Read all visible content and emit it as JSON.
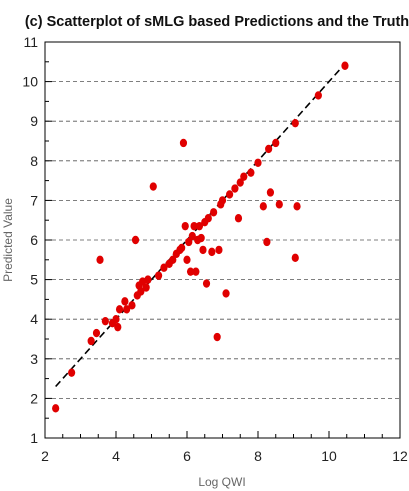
{
  "chart_data": {
    "type": "scatter",
    "title": "(c) Scatterplot of sMLG based Predictions and the Truth",
    "xlabel": "Log QWI",
    "ylabel": "Predicted Value",
    "xlim": [
      2,
      12
    ],
    "ylim": [
      1,
      11
    ],
    "xticks": [
      2,
      4,
      6,
      8,
      10,
      12
    ],
    "yticks": [
      1,
      2,
      3,
      4,
      5,
      6,
      7,
      8,
      9,
      10,
      11
    ],
    "grid": "horizontal dashed",
    "point_color": "#e00000",
    "line_color": "#000000",
    "series": [
      {
        "type": "scatter",
        "points": [
          [
            2.3,
            1.75
          ],
          [
            2.75,
            2.65
          ],
          [
            3.3,
            3.45
          ],
          [
            3.45,
            3.65
          ],
          [
            3.55,
            5.5
          ],
          [
            3.7,
            3.95
          ],
          [
            3.9,
            3.9
          ],
          [
            4.0,
            4.0
          ],
          [
            4.05,
            3.8
          ],
          [
            4.1,
            4.25
          ],
          [
            4.25,
            4.45
          ],
          [
            4.3,
            4.25
          ],
          [
            4.45,
            4.35
          ],
          [
            4.55,
            6.0
          ],
          [
            4.6,
            4.6
          ],
          [
            4.65,
            4.85
          ],
          [
            4.7,
            4.7
          ],
          [
            4.75,
            4.95
          ],
          [
            4.85,
            4.8
          ],
          [
            4.9,
            5.0
          ],
          [
            5.05,
            7.35
          ],
          [
            5.2,
            5.1
          ],
          [
            5.35,
            5.3
          ],
          [
            5.5,
            5.4
          ],
          [
            5.6,
            5.5
          ],
          [
            5.7,
            5.65
          ],
          [
            5.8,
            5.75
          ],
          [
            5.85,
            5.8
          ],
          [
            5.9,
            8.45
          ],
          [
            5.95,
            6.35
          ],
          [
            6.0,
            5.5
          ],
          [
            6.05,
            5.95
          ],
          [
            6.1,
            5.2
          ],
          [
            6.15,
            6.1
          ],
          [
            6.2,
            6.35
          ],
          [
            6.25,
            5.2
          ],
          [
            6.3,
            6.0
          ],
          [
            6.35,
            6.35
          ],
          [
            6.4,
            6.05
          ],
          [
            6.45,
            5.75
          ],
          [
            6.5,
            6.45
          ],
          [
            6.55,
            4.9
          ],
          [
            6.6,
            6.55
          ],
          [
            6.7,
            5.7
          ],
          [
            6.75,
            6.7
          ],
          [
            6.85,
            3.55
          ],
          [
            6.9,
            5.75
          ],
          [
            6.95,
            6.9
          ],
          [
            7.0,
            7.0
          ],
          [
            7.1,
            4.65
          ],
          [
            7.2,
            7.15
          ],
          [
            7.35,
            7.3
          ],
          [
            7.45,
            6.55
          ],
          [
            7.5,
            7.45
          ],
          [
            7.6,
            7.6
          ],
          [
            7.8,
            7.7
          ],
          [
            8.0,
            7.95
          ],
          [
            8.15,
            6.85
          ],
          [
            8.25,
            5.95
          ],
          [
            8.3,
            8.3
          ],
          [
            8.35,
            7.2
          ],
          [
            8.5,
            8.45
          ],
          [
            8.6,
            6.9
          ],
          [
            9.05,
            5.55
          ],
          [
            9.05,
            8.95
          ],
          [
            9.1,
            6.85
          ],
          [
            9.7,
            9.65
          ],
          [
            10.45,
            10.4
          ]
        ]
      },
      {
        "type": "line",
        "style": "dashed",
        "points": [
          [
            2.3,
            2.3
          ],
          [
            10.45,
            10.45
          ]
        ]
      }
    ]
  }
}
